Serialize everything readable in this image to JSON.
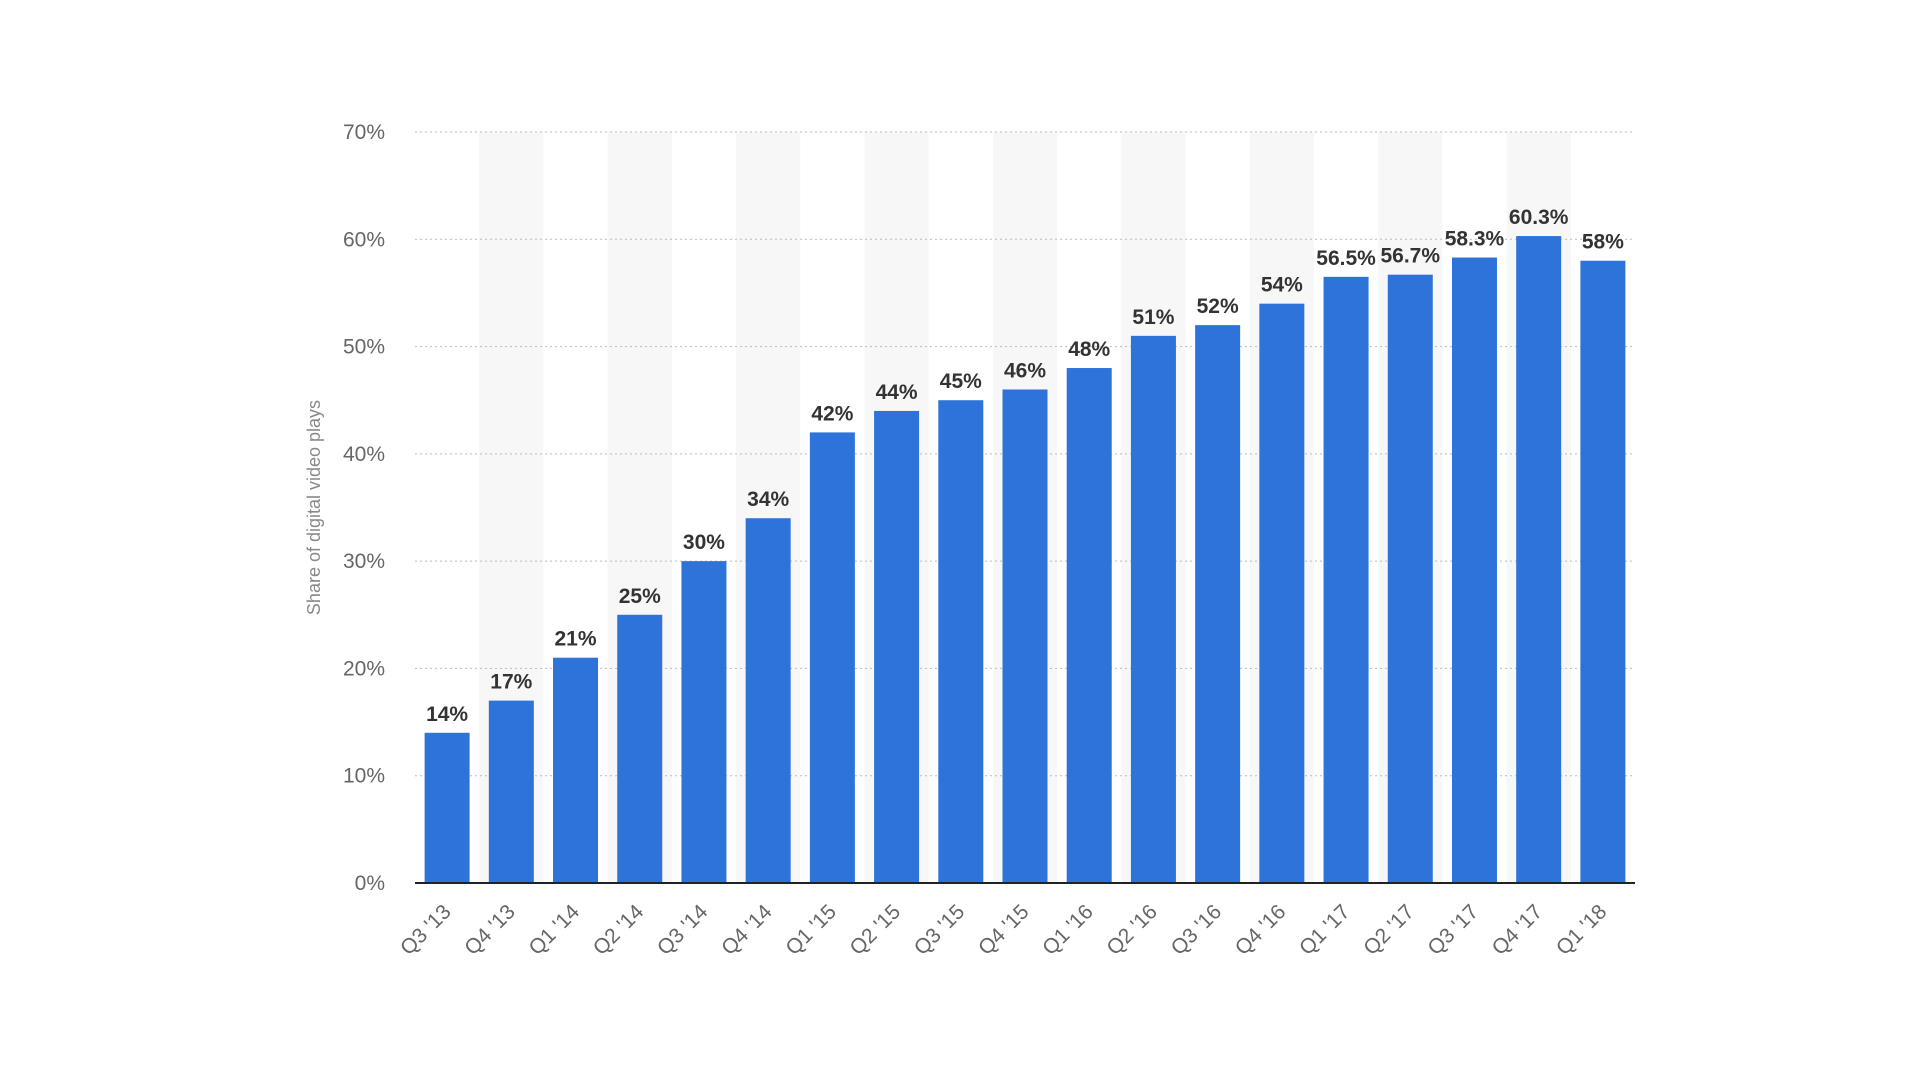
{
  "chart_data": {
    "type": "bar",
    "title": "",
    "xlabel": "",
    "ylabel": "Share of digital video plays",
    "categories": [
      "Q3 '13",
      "Q4 '13",
      "Q1 '14",
      "Q2 '14",
      "Q3 '14",
      "Q4 '14",
      "Q1 '15",
      "Q2 '15",
      "Q3 '15",
      "Q4 '15",
      "Q1 '16",
      "Q2 '16",
      "Q3 '16",
      "Q4 '16",
      "Q1 '17",
      "Q2 '17",
      "Q3 '17",
      "Q4 '17",
      "Q1 '18"
    ],
    "values": [
      14,
      17,
      21,
      25,
      30,
      34,
      42,
      44,
      45,
      46,
      48,
      51,
      52,
      54,
      56.5,
      56.7,
      58.3,
      60.3,
      58
    ],
    "data_labels": [
      "14%",
      "17%",
      "21%",
      "25%",
      "30%",
      "34%",
      "42%",
      "44%",
      "45%",
      "46%",
      "48%",
      "51%",
      "52%",
      "54%",
      "56.5%",
      "56.7%",
      "58.3%",
      "60.3%",
      "58%"
    ],
    "ylim": [
      0,
      70
    ],
    "yticks": [
      0,
      10,
      20,
      30,
      40,
      50,
      60,
      70
    ],
    "ytick_labels": [
      "0%",
      "10%",
      "20%",
      "30%",
      "40%",
      "50%",
      "60%",
      "70%"
    ],
    "grid": true,
    "legend": "none",
    "colors": {
      "bar": "#2d73d9",
      "grid": "#bbbbbb",
      "axis": "#222222",
      "band": "#f7f7f7"
    }
  }
}
